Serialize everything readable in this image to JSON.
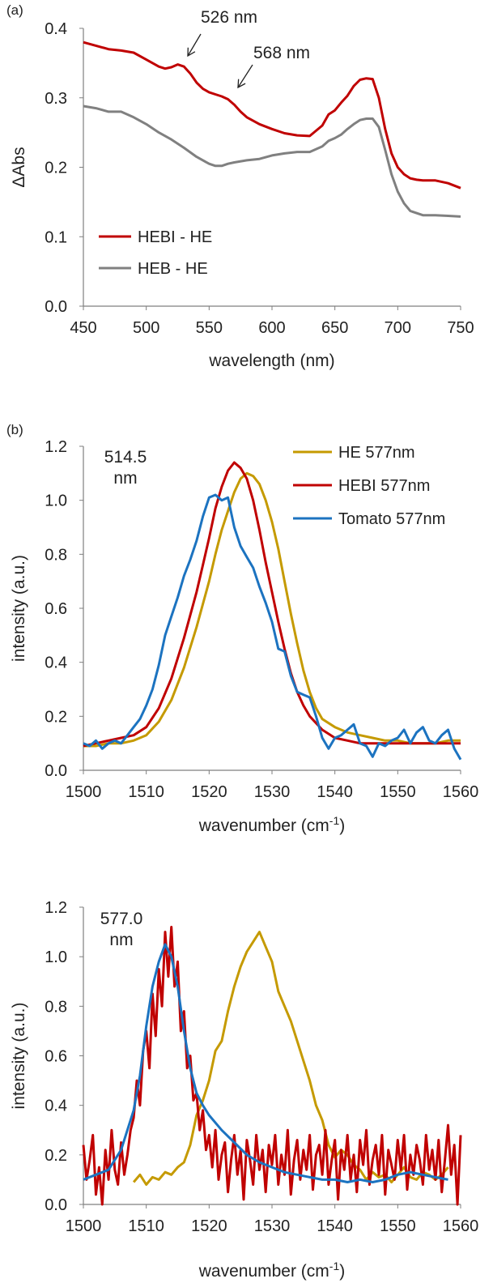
{
  "panel_labels": [
    "(a)",
    "(b)"
  ],
  "chart_data": [
    {
      "type": "line",
      "panel": "(a)",
      "xlabel": "wavelength (nm)",
      "ylabel": "ΔAbs",
      "xlim": [
        450,
        750
      ],
      "ylim": [
        0,
        0.4
      ],
      "xticks": [
        450,
        500,
        550,
        600,
        650,
        700,
        750
      ],
      "yticks": [
        0.0,
        0.1,
        0.2,
        0.3,
        0.4
      ],
      "ytick_labels": [
        "0.0",
        "0.1",
        "0.2",
        "0.3",
        "0.4"
      ],
      "grid": false,
      "legend": "bottom-left",
      "annotations": [
        {
          "text": "526 nm",
          "x": 526,
          "y": 0.35
        },
        {
          "text": "568 nm",
          "x": 568,
          "y": 0.31
        }
      ],
      "series": [
        {
          "name": "HEBI - HE",
          "color": "#c00000",
          "x": [
            450,
            460,
            470,
            480,
            490,
            500,
            510,
            515,
            520,
            525,
            530,
            535,
            540,
            545,
            550,
            555,
            560,
            565,
            570,
            575,
            580,
            590,
            600,
            610,
            620,
            630,
            640,
            645,
            650,
            655,
            660,
            665,
            670,
            675,
            680,
            685,
            690,
            695,
            700,
            705,
            710,
            715,
            720,
            730,
            740,
            750
          ],
          "y": [
            0.38,
            0.375,
            0.37,
            0.368,
            0.365,
            0.355,
            0.345,
            0.342,
            0.344,
            0.348,
            0.345,
            0.335,
            0.322,
            0.313,
            0.308,
            0.305,
            0.302,
            0.298,
            0.29,
            0.28,
            0.272,
            0.262,
            0.255,
            0.249,
            0.246,
            0.245,
            0.26,
            0.276,
            0.282,
            0.293,
            0.303,
            0.317,
            0.326,
            0.328,
            0.327,
            0.3,
            0.255,
            0.22,
            0.2,
            0.19,
            0.184,
            0.182,
            0.181,
            0.181,
            0.177,
            0.17
          ]
        },
        {
          "name": "HEB - HE",
          "color": "#808080",
          "x": [
            450,
            460,
            470,
            480,
            490,
            500,
            510,
            520,
            530,
            540,
            550,
            555,
            560,
            565,
            570,
            580,
            590,
            600,
            610,
            620,
            630,
            640,
            645,
            650,
            655,
            660,
            665,
            670,
            675,
            680,
            685,
            690,
            695,
            700,
            705,
            710,
            720,
            730,
            740,
            750
          ],
          "y": [
            0.288,
            0.285,
            0.28,
            0.28,
            0.272,
            0.262,
            0.25,
            0.24,
            0.228,
            0.215,
            0.205,
            0.202,
            0.202,
            0.205,
            0.207,
            0.21,
            0.212,
            0.217,
            0.22,
            0.222,
            0.222,
            0.23,
            0.238,
            0.242,
            0.247,
            0.255,
            0.262,
            0.268,
            0.27,
            0.27,
            0.258,
            0.225,
            0.19,
            0.165,
            0.148,
            0.137,
            0.131,
            0.131,
            0.13,
            0.129
          ]
        }
      ]
    },
    {
      "type": "line",
      "panel": "(b)",
      "label": "514.5\nnm",
      "xlabel": "wavenumber (cm-1)",
      "xlabel_main": "wavenumber (cm",
      "xlabel_sup": "-1",
      "xlabel_close": ")",
      "ylabel": "intensity (a.u.)",
      "xlim": [
        1500,
        1560
      ],
      "ylim": [
        0,
        1.2
      ],
      "xticks": [
        1500,
        1510,
        1520,
        1530,
        1540,
        1550,
        1560
      ],
      "yticks": [
        0.0,
        0.2,
        0.4,
        0.6,
        0.8,
        1.0,
        1.2
      ],
      "ytick_labels": [
        "0.0",
        "0.2",
        "0.4",
        "0.6",
        "0.8",
        "1.0",
        "1.2"
      ],
      "grid": false,
      "legend": "top-right",
      "series": [
        {
          "name": "HE 577nm",
          "color": "#c59a00",
          "x": [
            1500,
            1502,
            1504,
            1506,
            1508,
            1510,
            1512,
            1514,
            1516,
            1518,
            1520,
            1521,
            1522,
            1523,
            1524,
            1525,
            1526,
            1527,
            1528,
            1529,
            1530,
            1531,
            1532,
            1533,
            1534,
            1535,
            1536,
            1537,
            1538,
            1540,
            1542,
            1544,
            1546,
            1548,
            1550,
            1552,
            1554,
            1556,
            1558,
            1560
          ],
          "y": [
            0.09,
            0.09,
            0.1,
            0.1,
            0.11,
            0.13,
            0.18,
            0.26,
            0.38,
            0.53,
            0.7,
            0.8,
            0.89,
            0.96,
            1.03,
            1.08,
            1.1,
            1.09,
            1.06,
            1.0,
            0.92,
            0.82,
            0.7,
            0.58,
            0.47,
            0.37,
            0.29,
            0.23,
            0.19,
            0.16,
            0.14,
            0.13,
            0.12,
            0.11,
            0.11,
            0.1,
            0.1,
            0.1,
            0.11,
            0.11
          ]
        },
        {
          "name": "HEBI 577nm",
          "color": "#c00000",
          "x": [
            1500,
            1502,
            1504,
            1506,
            1508,
            1510,
            1512,
            1514,
            1516,
            1518,
            1519,
            1520,
            1521,
            1522,
            1523,
            1524,
            1525,
            1526,
            1527,
            1528,
            1529,
            1530,
            1531,
            1532,
            1533,
            1534,
            1535,
            1536,
            1538,
            1540,
            1542,
            1544,
            1546,
            1548,
            1550,
            1552,
            1554,
            1556,
            1558,
            1560
          ],
          "y": [
            0.09,
            0.1,
            0.11,
            0.12,
            0.13,
            0.16,
            0.23,
            0.34,
            0.49,
            0.66,
            0.76,
            0.86,
            0.97,
            1.05,
            1.11,
            1.14,
            1.12,
            1.08,
            1.0,
            0.89,
            0.77,
            0.66,
            0.55,
            0.45,
            0.36,
            0.29,
            0.24,
            0.2,
            0.15,
            0.12,
            0.11,
            0.1,
            0.1,
            0.1,
            0.1,
            0.1,
            0.1,
            0.1,
            0.1,
            0.1
          ]
        },
        {
          "name": "Tomato 577nm",
          "color": "#1c73c0",
          "x": [
            1500,
            1501,
            1502,
            1503,
            1504,
            1505,
            1506,
            1507,
            1508,
            1509,
            1510,
            1511,
            1512,
            1513,
            1514,
            1515,
            1516,
            1517,
            1518,
            1519,
            1520,
            1521,
            1522,
            1523,
            1524,
            1525,
            1526,
            1527,
            1528,
            1529,
            1530,
            1531,
            1532,
            1533,
            1534,
            1535,
            1536,
            1537,
            1538,
            1539,
            1540,
            1541,
            1542,
            1543,
            1544,
            1545,
            1546,
            1547,
            1548,
            1549,
            1550,
            1551,
            1552,
            1553,
            1554,
            1555,
            1556,
            1557,
            1558,
            1559,
            1560
          ],
          "y": [
            0.1,
            0.09,
            0.11,
            0.08,
            0.1,
            0.11,
            0.1,
            0.13,
            0.16,
            0.19,
            0.24,
            0.3,
            0.39,
            0.5,
            0.57,
            0.64,
            0.72,
            0.78,
            0.85,
            0.94,
            1.01,
            1.02,
            1.0,
            1.01,
            0.9,
            0.83,
            0.79,
            0.75,
            0.68,
            0.62,
            0.55,
            0.45,
            0.44,
            0.35,
            0.29,
            0.28,
            0.27,
            0.2,
            0.12,
            0.08,
            0.12,
            0.13,
            0.15,
            0.17,
            0.1,
            0.09,
            0.05,
            0.1,
            0.09,
            0.11,
            0.12,
            0.15,
            0.1,
            0.14,
            0.16,
            0.11,
            0.1,
            0.13,
            0.15,
            0.08,
            0.04
          ]
        }
      ]
    },
    {
      "type": "line",
      "label": "577.0\nnm",
      "xlabel": "wavenumber (cm-1)",
      "xlabel_main": "wavenumber (cm",
      "xlabel_sup": "-1",
      "xlabel_close": ")",
      "ylabel": "intensity (a.u.)",
      "xlim": [
        1500,
        1560
      ],
      "ylim": [
        0,
        1.2
      ],
      "xticks": [
        1500,
        1510,
        1520,
        1530,
        1540,
        1550,
        1560
      ],
      "yticks": [
        0.0,
        0.2,
        0.4,
        0.6,
        0.8,
        1.0,
        1.2
      ],
      "ytick_labels": [
        "0.0",
        "0.2",
        "0.4",
        "0.6",
        "0.8",
        "1.0",
        "1.2"
      ],
      "grid": false,
      "legend": "none",
      "series": [
        {
          "color": "#c59a00",
          "x": [
            1508,
            1509,
            1510,
            1511,
            1512,
            1513,
            1514,
            1515,
            1516,
            1517,
            1518,
            1519,
            1520,
            1521,
            1522,
            1523,
            1524,
            1525,
            1526,
            1527,
            1528,
            1529,
            1530,
            1531,
            1532,
            1533,
            1534,
            1535,
            1536,
            1537,
            1538,
            1539,
            1540,
            1541,
            1542,
            1543,
            1544,
            1545,
            1546,
            1547,
            1548,
            1549,
            1550,
            1551,
            1552,
            1553,
            1554,
            1555,
            1556,
            1557,
            1558
          ],
          "y": [
            0.09,
            0.12,
            0.08,
            0.11,
            0.1,
            0.13,
            0.12,
            0.15,
            0.17,
            0.24,
            0.36,
            0.42,
            0.5,
            0.62,
            0.66,
            0.78,
            0.88,
            0.96,
            1.02,
            1.06,
            1.1,
            1.04,
            0.98,
            0.86,
            0.8,
            0.74,
            0.66,
            0.58,
            0.5,
            0.4,
            0.34,
            0.24,
            0.19,
            0.22,
            0.2,
            0.16,
            0.14,
            0.1,
            0.13,
            0.11,
            0.12,
            0.09,
            0.12,
            0.15,
            0.11,
            0.1,
            0.13,
            0.12,
            0.1,
            0.12,
            0.15
          ]
        },
        {
          "color": "#c00000",
          "x": [
            1500,
            1500.5,
            1501,
            1501.5,
            1502,
            1502.5,
            1503,
            1503.5,
            1504,
            1504.5,
            1505,
            1505.5,
            1506,
            1506.5,
            1507,
            1507.5,
            1508,
            1508.5,
            1509,
            1509.5,
            1510,
            1510.5,
            1511,
            1511.5,
            1512,
            1512.5,
            1513,
            1513.5,
            1514,
            1514.5,
            1515,
            1515.5,
            1516,
            1516.5,
            1517,
            1517.5,
            1518,
            1518.5,
            1519,
            1519.5,
            1520,
            1520.5,
            1521,
            1521.5,
            1522,
            1522.5,
            1523,
            1523.5,
            1524,
            1524.5,
            1525,
            1525.5,
            1526,
            1526.5,
            1527,
            1527.5,
            1528,
            1528.5,
            1529,
            1529.5,
            1530,
            1530.5,
            1531,
            1531.5,
            1532,
            1532.5,
            1533,
            1533.5,
            1534,
            1534.5,
            1535,
            1535.5,
            1536,
            1536.5,
            1537,
            1537.5,
            1538,
            1538.5,
            1539,
            1539.5,
            1540,
            1540.5,
            1541,
            1541.5,
            1542,
            1542.5,
            1543,
            1543.5,
            1544,
            1544.5,
            1545,
            1545.5,
            1546,
            1546.5,
            1547,
            1547.5,
            1548,
            1548.5,
            1549,
            1549.5,
            1550,
            1550.5,
            1551,
            1551.5,
            1552,
            1552.5,
            1553,
            1553.5,
            1554,
            1554.5,
            1555,
            1555.5,
            1556,
            1556.5,
            1557,
            1557.5,
            1558,
            1558.5,
            1559,
            1559.5,
            1560
          ],
          "y": [
            0.24,
            0.1,
            0.18,
            0.28,
            0.04,
            0.15,
            0.0,
            0.22,
            0.1,
            0.3,
            0.14,
            0.08,
            0.25,
            0.12,
            0.2,
            0.3,
            0.35,
            0.5,
            0.4,
            0.62,
            0.7,
            0.55,
            0.85,
            0.68,
            0.95,
            0.8,
            1.1,
            0.92,
            1.12,
            0.88,
            0.98,
            0.7,
            0.78,
            0.55,
            0.6,
            0.42,
            0.45,
            0.3,
            0.38,
            0.22,
            0.28,
            0.15,
            0.3,
            0.1,
            0.2,
            0.25,
            0.05,
            0.18,
            0.28,
            0.12,
            0.22,
            0.02,
            0.26,
            0.18,
            0.08,
            0.28,
            0.14,
            0.22,
            0.05,
            0.24,
            0.16,
            0.28,
            0.08,
            0.2,
            0.12,
            0.3,
            0.04,
            0.18,
            0.26,
            0.1,
            0.22,
            0.14,
            0.28,
            0.06,
            0.2,
            0.24,
            0.12,
            0.3,
            0.08,
            0.18,
            0.26,
            0.02,
            0.22,
            0.14,
            0.28,
            0.1,
            0.2,
            0.05,
            0.26,
            0.16,
            0.3,
            0.08,
            0.18,
            0.24,
            0.12,
            0.28,
            0.04,
            0.22,
            0.16,
            0.1,
            0.26,
            0.14,
            0.28,
            0.06,
            0.2,
            0.12,
            0.24,
            0.18,
            0.08,
            0.28,
            0.14,
            0.22,
            0.1,
            0.26,
            0.05,
            0.18,
            0.32,
            0.12,
            0.24,
            0.0,
            0.28
          ]
        },
        {
          "color": "#1c73c0",
          "x": [
            1500,
            1502,
            1504,
            1506,
            1508,
            1509,
            1510,
            1511,
            1512,
            1513,
            1514,
            1515,
            1516,
            1517,
            1518,
            1519,
            1520,
            1522,
            1524,
            1526,
            1528,
            1530,
            1532,
            1534,
            1536,
            1538,
            1540,
            1542,
            1544,
            1546,
            1548,
            1550,
            1552,
            1554,
            1556,
            1558
          ],
          "y": [
            0.1,
            0.12,
            0.14,
            0.22,
            0.38,
            0.52,
            0.72,
            0.88,
            0.98,
            1.05,
            1.0,
            0.88,
            0.7,
            0.55,
            0.45,
            0.4,
            0.36,
            0.3,
            0.25,
            0.2,
            0.17,
            0.15,
            0.13,
            0.12,
            0.11,
            0.1,
            0.1,
            0.09,
            0.1,
            0.09,
            0.1,
            0.12,
            0.13,
            0.12,
            0.11,
            0.1
          ]
        }
      ]
    }
  ]
}
